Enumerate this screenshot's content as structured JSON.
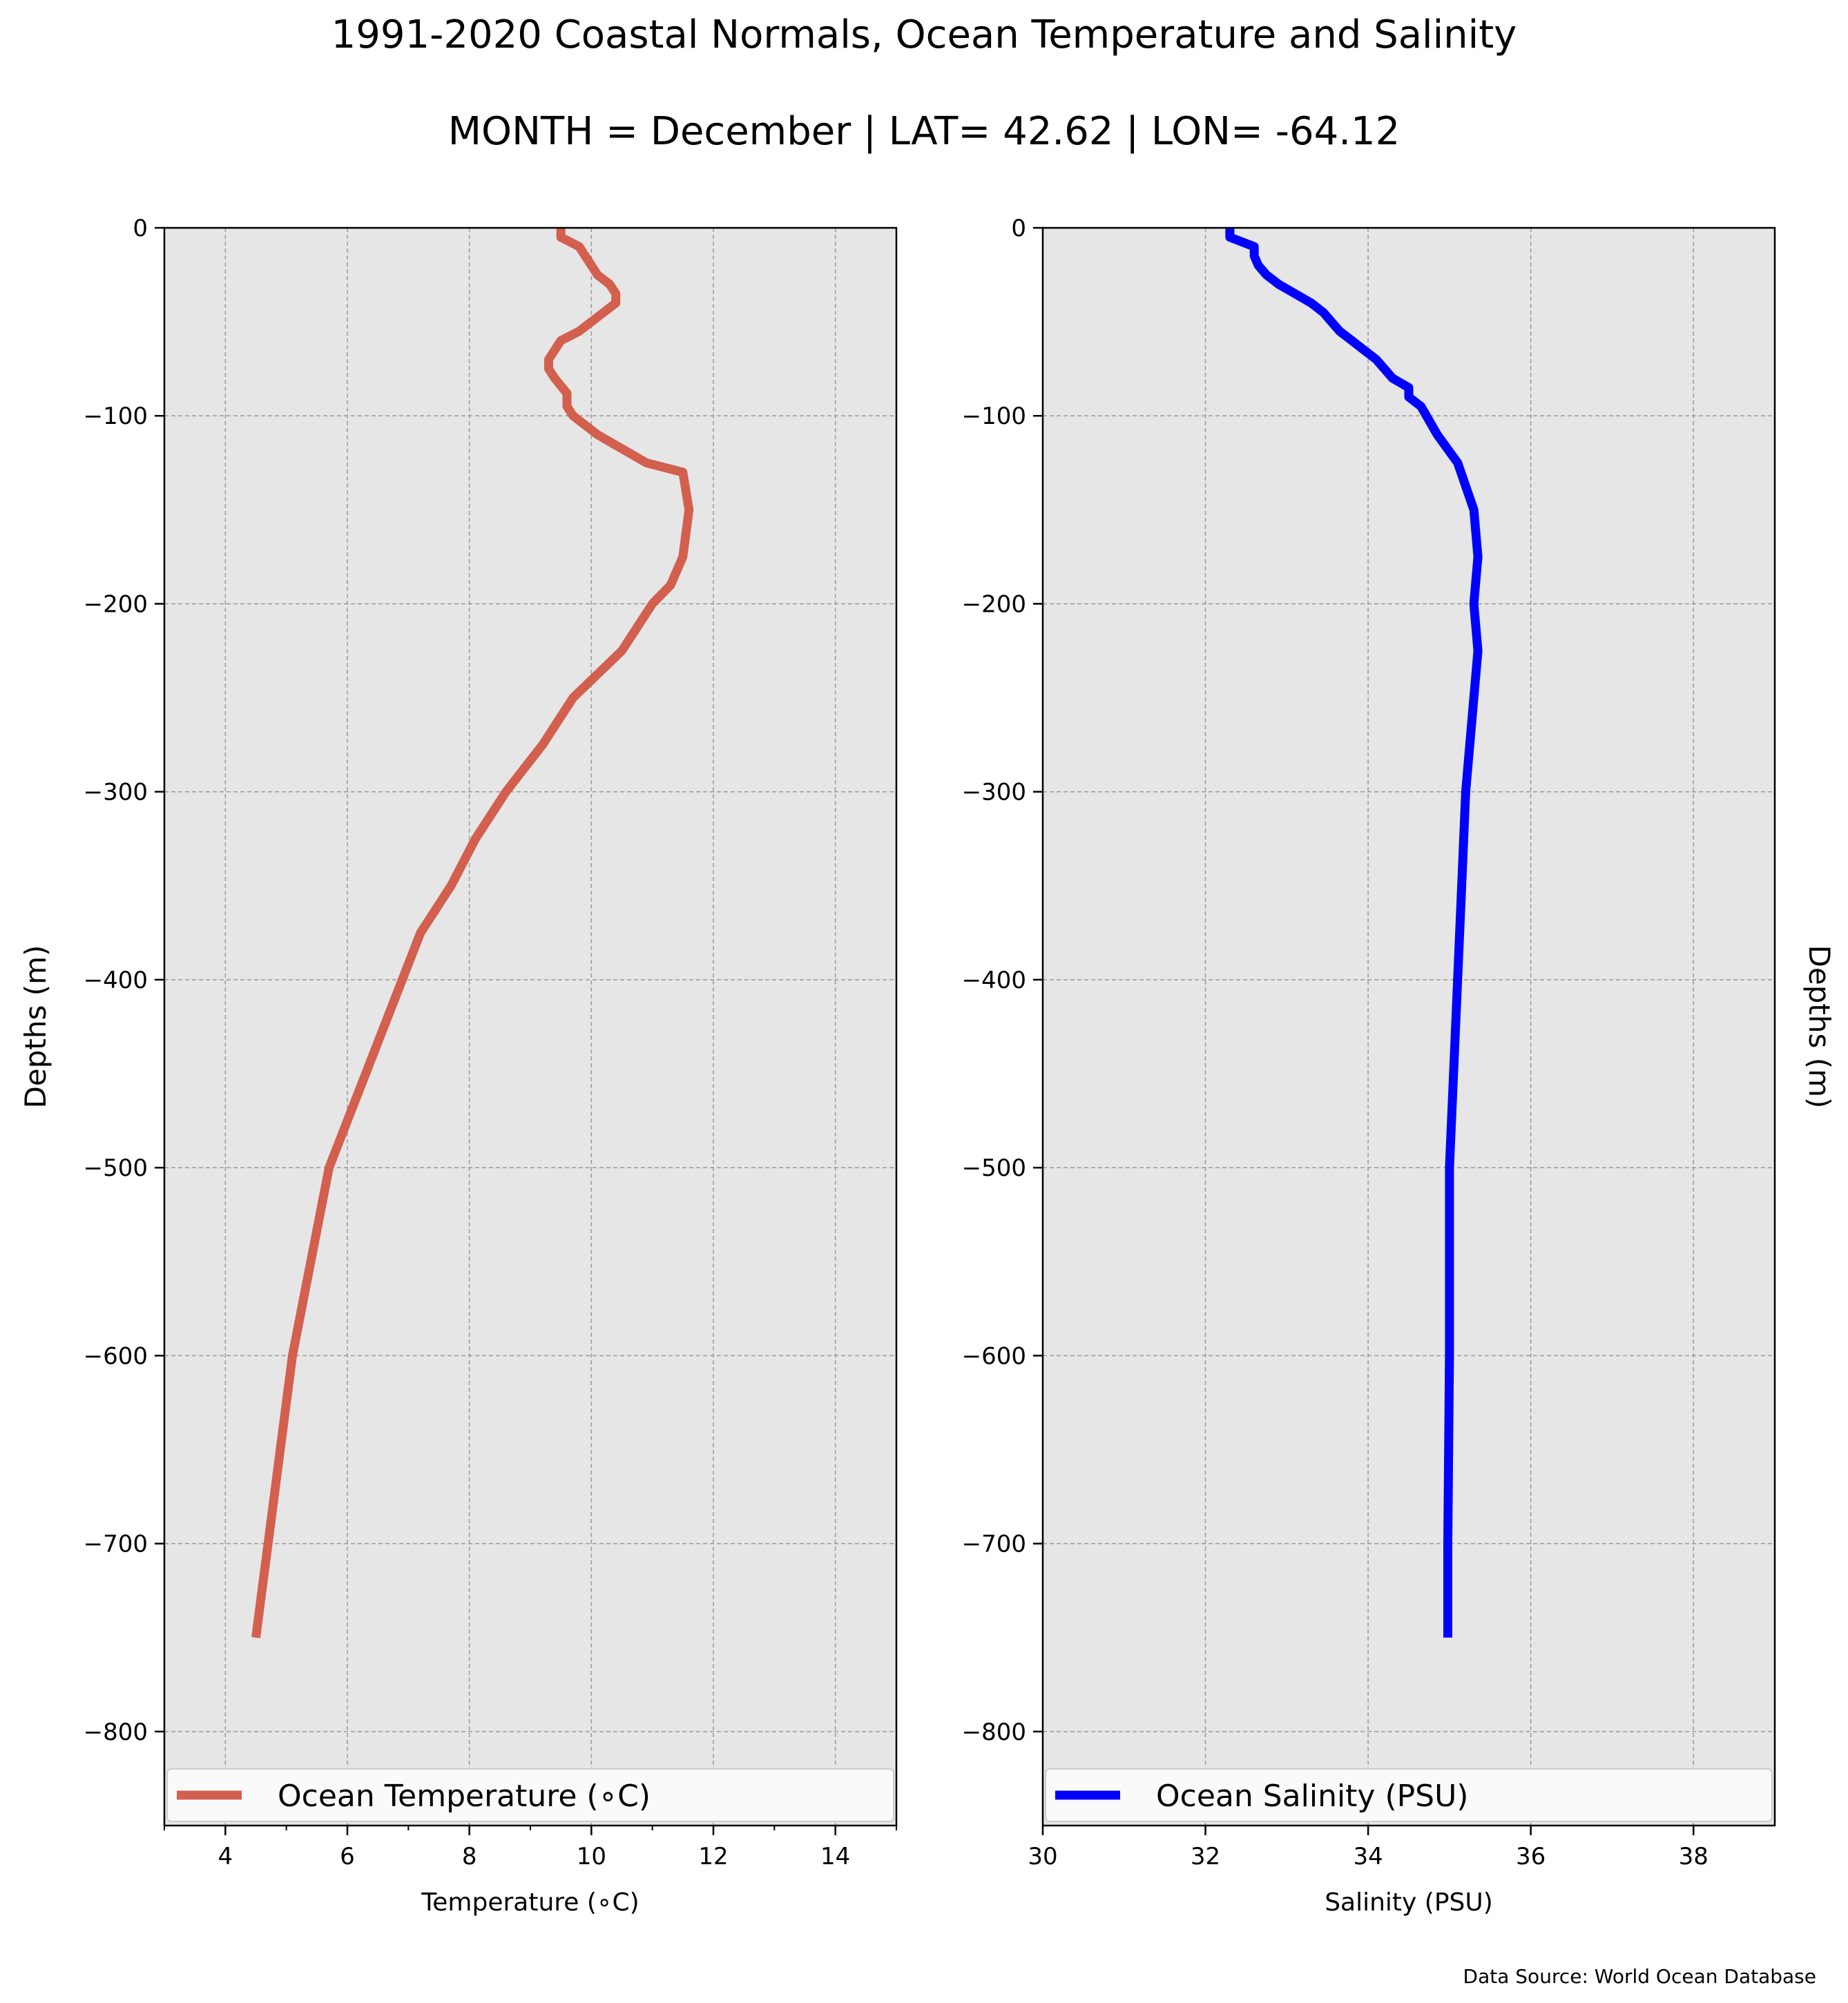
{
  "figure": {
    "title": "1991-2020 Coastal Normals, Ocean Temperature and Salinity",
    "subtitle": "MONTH = December | LAT= 42.62 | LON= -64.12",
    "source": "Data Source: World Ocean Database"
  },
  "colors": {
    "temperature": "#d35f4f",
    "salinity": "#0000ff",
    "axes_bg": "#e6e6e6",
    "grid": "#999999"
  },
  "chart_data": [
    {
      "type": "line",
      "xlabel": "Temperature ($^\\circ$C)",
      "xlabel_display": "Temperature (∘C)",
      "ylabel": "Depths (m)",
      "xlim": [
        3,
        15
      ],
      "ylim": [
        -850,
        0
      ],
      "xticks": [
        4,
        6,
        8,
        10,
        12,
        14
      ],
      "xticks_minor": [
        3,
        5,
        7,
        9,
        11,
        13,
        15
      ],
      "yticks": [
        0,
        -100,
        -200,
        -300,
        -400,
        -500,
        -600,
        -700,
        -800
      ],
      "ytick_labels": [
        "0",
        "−100",
        "−200",
        "−300",
        "−400",
        "−500",
        "−600",
        "−700",
        "−800"
      ],
      "grid": true,
      "legend": "bottom",
      "legend_label": "Ocean Temperature (∘C)",
      "series": [
        {
          "name": "Ocean Temperature (∘C)",
          "color": "#d35f4f",
          "x": [
            9.5,
            9.5,
            9.8,
            9.9,
            10.1,
            10.3,
            10.4,
            10.4,
            10.2,
            9.8,
            9.5,
            9.4,
            9.3,
            9.3,
            9.4,
            9.6,
            9.6,
            9.7,
            10.1,
            10.9,
            11.5,
            11.6,
            11.5,
            11.3,
            11.0,
            10.5,
            9.7,
            9.2,
            8.6,
            8.1,
            7.7,
            7.2,
            6.9,
            6.6,
            6.3,
            6.0,
            5.7,
            5.4,
            5.1,
            4.9,
            4.7,
            4.6,
            4.5
          ],
          "y": [
            0,
            -5,
            -10,
            -15,
            -25,
            -30,
            -35,
            -40,
            -45,
            -55,
            -60,
            -65,
            -70,
            -75,
            -80,
            -88,
            -95,
            -100,
            -110,
            -125,
            -130,
            -150,
            -175,
            -190,
            -200,
            -225,
            -250,
            -275,
            -300,
            -325,
            -350,
            -375,
            -400,
            -425,
            -450,
            -475,
            -500,
            -550,
            -600,
            -650,
            -700,
            -725,
            -750
          ]
        }
      ]
    },
    {
      "type": "line",
      "xlabel": "Salinity (PSU)",
      "ylabel": "Depths (m)",
      "xlim": [
        30,
        39
      ],
      "ylim": [
        -850,
        0
      ],
      "xticks": [
        30,
        32,
        34,
        36,
        38
      ],
      "yticks": [
        0,
        -100,
        -200,
        -300,
        -400,
        -500,
        -600,
        -700,
        -800
      ],
      "ytick_labels": [
        "0",
        "−100",
        "−200",
        "−300",
        "−400",
        "−500",
        "−600",
        "−700",
        "−800"
      ],
      "grid": true,
      "legend": "bottom",
      "legend_label": "Ocean Salinity (PSU)",
      "series": [
        {
          "name": "Ocean Salinity (PSU)",
          "color": "#0000ff",
          "x": [
            32.3,
            32.3,
            32.6,
            32.6,
            32.65,
            32.75,
            32.9,
            33.1,
            33.3,
            33.45,
            33.55,
            33.65,
            33.8,
            33.95,
            34.1,
            34.2,
            34.3,
            34.5,
            34.5,
            34.65,
            34.85,
            35.1,
            35.3,
            35.35,
            35.3,
            35.35,
            35.3,
            35.25,
            35.2,
            35.15,
            35.1,
            35.05,
            35.0,
            35.0,
            34.98,
            34.98
          ],
          "y": [
            0,
            -5,
            -10,
            -15,
            -20,
            -25,
            -30,
            -35,
            -40,
            -45,
            -50,
            -55,
            -60,
            -65,
            -70,
            -75,
            -80,
            -85,
            -90,
            -95,
            -110,
            -125,
            -150,
            -175,
            -200,
            -225,
            -250,
            -275,
            -300,
            -350,
            -400,
            -450,
            -500,
            -600,
            -700,
            -750
          ]
        }
      ]
    }
  ]
}
